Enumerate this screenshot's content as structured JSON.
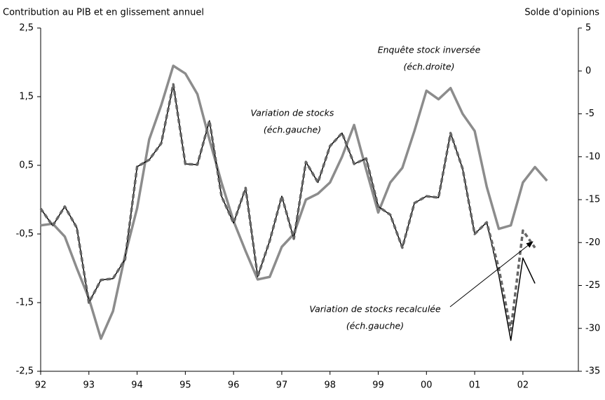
{
  "chart_data": {
    "type": "line",
    "y_label": "Contribution au PIB et en glissement annuel",
    "y2_label": "Solde d'opinions",
    "xlim": [
      1992,
      2003.15
    ],
    "xticks": [
      {
        "value": 1992,
        "label": "92"
      },
      {
        "value": 1993,
        "label": "93"
      },
      {
        "value": 1994,
        "label": "94"
      },
      {
        "value": 1995,
        "label": "95"
      },
      {
        "value": 1996,
        "label": "96"
      },
      {
        "value": 1997,
        "label": "97"
      },
      {
        "value": 1998,
        "label": "98"
      },
      {
        "value": 1999,
        "label": "99"
      },
      {
        "value": 2000,
        "label": "00"
      },
      {
        "value": 2001,
        "label": "01"
      },
      {
        "value": 2002,
        "label": "02"
      }
    ],
    "ylim": [
      -2.5,
      2.5
    ],
    "yticks": [
      {
        "value": 2.5,
        "label": "2,5"
      },
      {
        "value": 1.5,
        "label": "1,5"
      },
      {
        "value": 0.5,
        "label": "0,5"
      },
      {
        "value": -0.5,
        "label": "-0,5"
      },
      {
        "value": -1.5,
        "label": "-1,5"
      },
      {
        "value": -2.5,
        "label": "-2,5"
      }
    ],
    "y2lim": [
      -35,
      5
    ],
    "y2ticks": [
      5,
      0,
      -5,
      -10,
      -15,
      -20,
      -25,
      -30,
      -35
    ],
    "series": [
      {
        "color": "#8c8c8c",
        "axis": "y2",
        "dash": false,
        "width": 3.5,
        "x": [
          1992,
          1992.25,
          1992.5,
          1992.75,
          1993,
          1993.25,
          1993.5,
          1993.75,
          1994,
          1994.25,
          1994.5,
          1994.75,
          1995,
          1995.25,
          1995.5,
          1995.75,
          1996,
          1996.25,
          1996.5,
          1996.75,
          1997,
          1997.25,
          1997.5,
          1997.75,
          1998,
          1998.25,
          1998.5,
          1998.75,
          1999,
          1999.25,
          1999.5,
          1999.75,
          2000,
          2000.25,
          2000.5,
          2000.75,
          2001,
          2001.25,
          2001.5,
          2001.75,
          2002,
          2002.25,
          2002.5
        ],
        "values": [
          -18,
          -17.8,
          -19.3,
          -23,
          -26.5,
          -31.2,
          -28,
          -21.5,
          -16,
          -8,
          -4,
          0.6,
          -0.3,
          -2.7,
          -8,
          -13,
          -17.5,
          -21,
          -24.3,
          -24,
          -20.5,
          -19,
          -15,
          -14.3,
          -13,
          -10,
          -6.3,
          -11.5,
          -16.5,
          -13,
          -11.3,
          -7,
          -2.3,
          -3.3,
          -2,
          -5,
          -7,
          -13.5,
          -18.4,
          -18,
          -13,
          -11.2,
          -12.8
        ]
      },
      {
        "color": "#000000",
        "axis": "y",
        "dash": false,
        "width": 1.5,
        "x": [
          1992,
          1992.25,
          1992.5,
          1992.75,
          1993,
          1993.25,
          1993.5,
          1993.75,
          1994,
          1994.25,
          1994.5,
          1994.75,
          1995,
          1995.25,
          1995.5,
          1995.75,
          1996,
          1996.25,
          1996.5,
          1996.75,
          1997,
          1997.25,
          1997.5,
          1997.75,
          1998,
          1998.25,
          1998.5,
          1998.75,
          1999,
          1999.25,
          1999.5,
          1999.75,
          2000,
          2000.25,
          2000.5,
          2000.75,
          2001,
          2001.25,
          2001.5,
          2001.75,
          2002,
          2002.25
        ],
        "values": [
          -0.13,
          -0.38,
          -0.1,
          -0.41,
          -1.5,
          -1.17,
          -1.15,
          -0.87,
          0.48,
          0.58,
          0.82,
          1.68,
          0.52,
          0.51,
          1.15,
          0.05,
          -0.34,
          0.17,
          -1.12,
          -0.6,
          0.05,
          -0.57,
          0.55,
          0.25,
          0.78,
          0.97,
          0.52,
          0.6,
          -0.1,
          -0.22,
          -0.7,
          -0.05,
          0.05,
          0.03,
          0.97,
          0.45,
          -0.5,
          -0.33,
          -1.1,
          -2.05,
          -0.85,
          -1.22
        ]
      },
      {
        "color": "#666666",
        "axis": "y",
        "dash": true,
        "width": 3.5,
        "x": [
          1992,
          1992.25,
          1992.5,
          1992.75,
          1993,
          1993.25,
          1993.5,
          1993.75,
          1994,
          1994.25,
          1994.5,
          1994.75,
          1995,
          1995.25,
          1995.5,
          1995.75,
          1996,
          1996.25,
          1996.5,
          1996.75,
          1997,
          1997.25,
          1997.5,
          1997.75,
          1998,
          1998.25,
          1998.5,
          1998.75,
          1999,
          1999.25,
          1999.5,
          1999.75,
          2000,
          2000.25,
          2000.5,
          2000.75,
          2001,
          2001.25,
          2001.5,
          2001.75,
          2002,
          2002.25
        ],
        "values": [
          -0.13,
          -0.38,
          -0.1,
          -0.41,
          -1.5,
          -1.17,
          -1.15,
          -0.87,
          0.48,
          0.58,
          0.82,
          1.68,
          0.52,
          0.51,
          1.15,
          0.05,
          -0.34,
          0.17,
          -1.12,
          -0.6,
          0.05,
          -0.57,
          0.55,
          0.25,
          0.78,
          0.97,
          0.52,
          0.6,
          -0.1,
          -0.22,
          -0.7,
          -0.05,
          0.05,
          0.03,
          0.97,
          0.45,
          -0.5,
          -0.33,
          -1.0,
          -1.9,
          -0.45,
          -0.7
        ]
      }
    ],
    "annotations": [
      [
        "Enquête stock inversée",
        "(éch.droite)"
      ],
      [
        "Variation de stocks",
        "(éch.gauche)"
      ],
      [
        "Variation de stocks recalculée",
        "(éch.gauche)"
      ]
    ]
  }
}
